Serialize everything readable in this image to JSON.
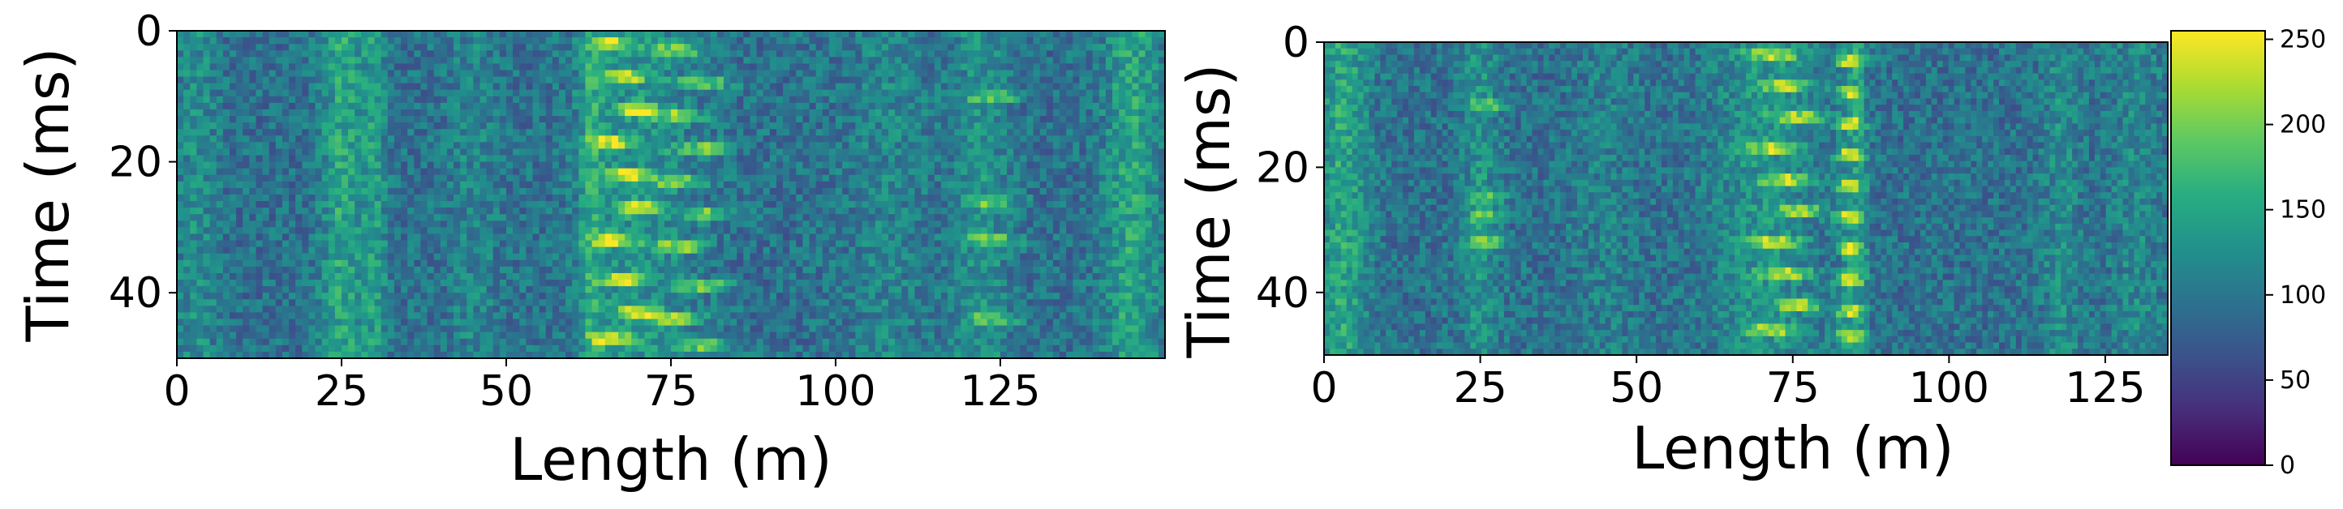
{
  "chart_data": [
    {
      "type": "heatmap",
      "xlabel": "Length (m)",
      "ylabel": "Time (ms)",
      "xlim": [
        0,
        150
      ],
      "ylim": [
        50,
        0
      ],
      "xticks": [
        "0",
        "25",
        "50",
        "75",
        "100",
        "125"
      ],
      "yticks": [
        "0",
        "20",
        "40"
      ],
      "value_range": [
        0,
        255
      ],
      "colormap": "viridis",
      "grid": false
    },
    {
      "type": "heatmap",
      "xlabel": "Length (m)",
      "ylabel": "Time (ms)",
      "xlim": [
        0,
        135
      ],
      "ylim": [
        50,
        0
      ],
      "xticks": [
        "0",
        "25",
        "50",
        "75",
        "100",
        "125"
      ],
      "yticks": [
        "0",
        "20",
        "40"
      ],
      "value_range": [
        0,
        255
      ],
      "colormap": "viridis",
      "grid": false
    }
  ],
  "colorbar": {
    "ticks": [
      "0",
      "50",
      "100",
      "150",
      "200",
      "250"
    ],
    "range": [
      0,
      255
    ],
    "colormap": "viridis",
    "placement": "right"
  }
}
